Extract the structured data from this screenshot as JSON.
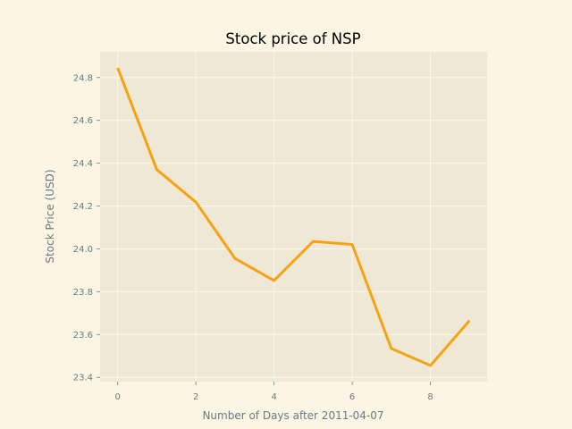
{
  "chart_data": {
    "type": "line",
    "title": "Stock price of NSP",
    "xlabel": "Number of Days after 2011-04-07",
    "ylabel": "Stock Price (USD)",
    "x": [
      0,
      1,
      2,
      3,
      4,
      5,
      6,
      7,
      8,
      9
    ],
    "series": [
      {
        "values": [
          24.845,
          24.37,
          24.218,
          23.955,
          23.852,
          24.035,
          24.02,
          23.535,
          23.455,
          23.665
        ]
      }
    ],
    "xlim": [
      -0.45,
      9.45
    ],
    "ylim": [
      23.38,
      24.92
    ],
    "xticks": [
      0,
      2,
      4,
      6,
      8
    ],
    "yticks": [
      23.4,
      23.6,
      23.8,
      24.0,
      24.2,
      24.4,
      24.6,
      24.8
    ],
    "xtick_labels": [
      "0",
      "2",
      "4",
      "6",
      "8"
    ],
    "ytick_labels": [
      "23.4",
      "23.6",
      "23.8",
      "24.0",
      "24.2",
      "24.4",
      "24.6",
      "24.8"
    ],
    "grid": true,
    "legend": false,
    "colors": {
      "figure_background": "#fcf5e3",
      "plot_background": "#eee8d5",
      "line": "#f5a314",
      "grid": "#fbf7ec",
      "text": "#657b83"
    }
  }
}
